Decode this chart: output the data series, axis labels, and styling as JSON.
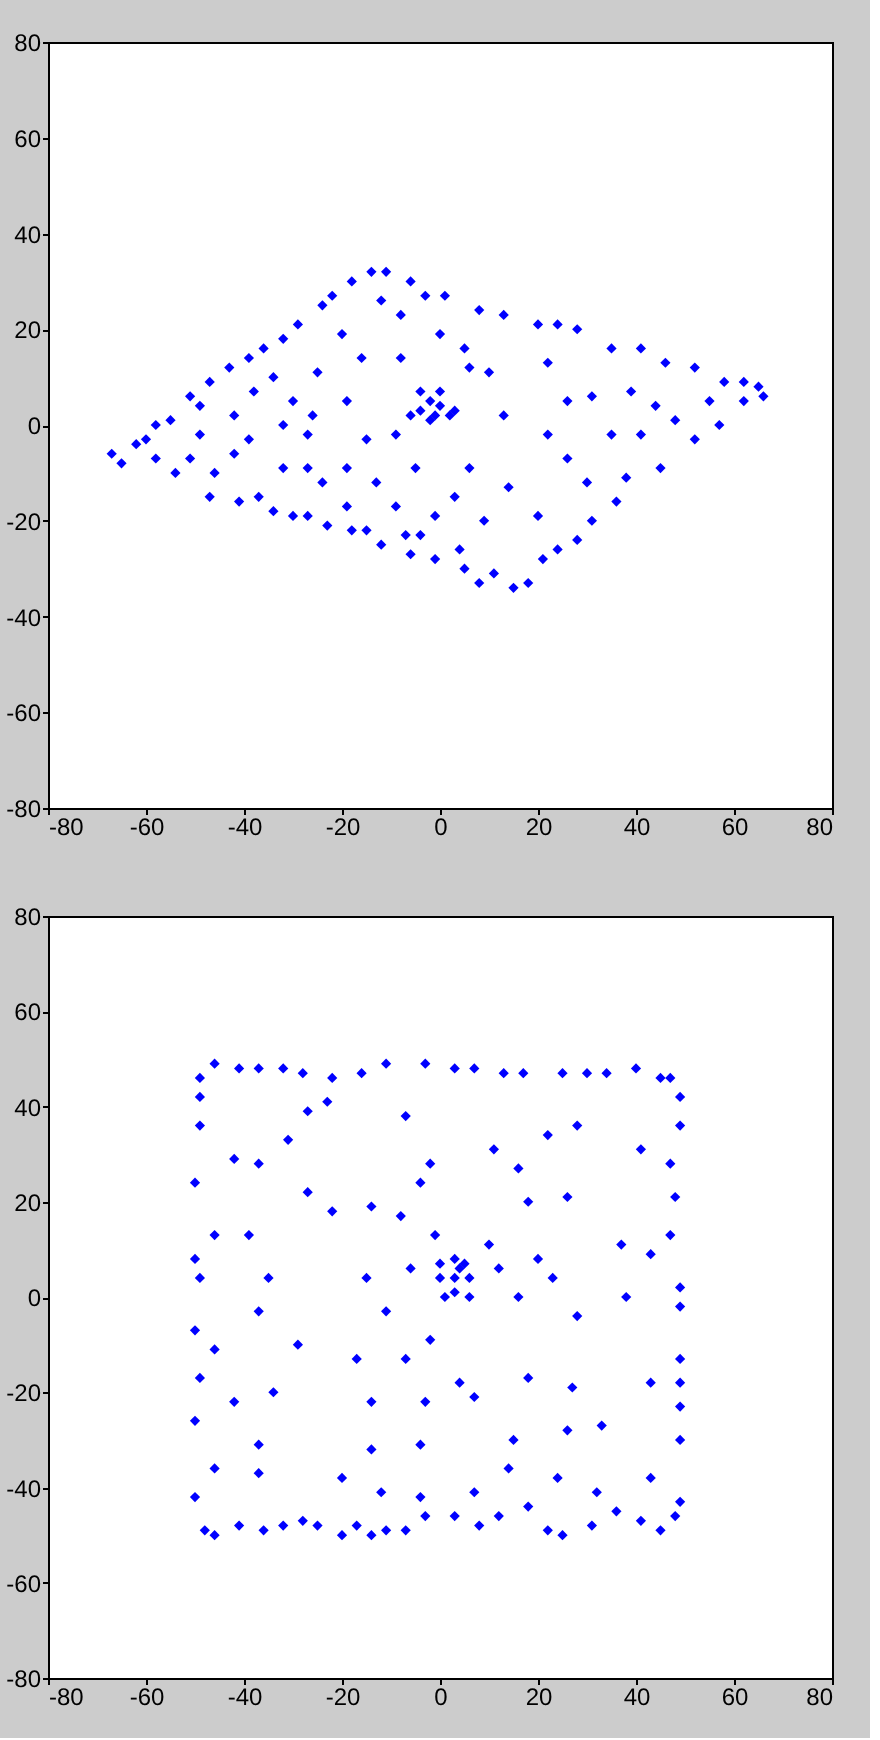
{
  "chart_data": [
    {
      "type": "scatter",
      "color": "#0000ff",
      "marker": "diamond",
      "grid": false,
      "xlim": [
        -80,
        80
      ],
      "ylim": [
        -80,
        80
      ],
      "xticks": [
        -80,
        -60,
        -40,
        -20,
        0,
        20,
        40,
        60,
        80
      ],
      "yticks": [
        -80,
        -60,
        -40,
        -20,
        0,
        20,
        40,
        60,
        80
      ],
      "x": [
        -67,
        -65,
        -62,
        -60,
        -58,
        -58,
        -55,
        -54,
        -51,
        -51,
        -49,
        -47,
        -46,
        -47,
        -43,
        -42,
        -41,
        -39,
        -36,
        -39,
        -37,
        -34,
        -32,
        -34,
        -32,
        -30,
        -29,
        -27,
        -27,
        -24,
        -25,
        -26,
        -22,
        -23,
        -20,
        -19,
        -19,
        -18,
        -18,
        -15,
        -16,
        -12,
        -14,
        -12,
        -11,
        -9,
        -8,
        -7,
        -6,
        -6,
        -3,
        -4,
        -1,
        1,
        0,
        3,
        4,
        5,
        8,
        8,
        11,
        10,
        13,
        15,
        18,
        20,
        21,
        22,
        24,
        24,
        28,
        26,
        28,
        31,
        31,
        35,
        36,
        38,
        41,
        41,
        46,
        45,
        52,
        48,
        52,
        55,
        58,
        57,
        62,
        62,
        66,
        65,
        -4,
        -2,
        -1,
        0,
        2,
        -2,
        -4,
        3,
        -6,
        0,
        -49,
        -42,
        -32,
        -30,
        -38,
        -15,
        -13,
        -9,
        -5,
        6,
        6,
        13,
        14,
        20,
        22,
        26,
        30,
        35,
        39,
        44,
        5,
        -8,
        -24,
        -27,
        -19,
        -1,
        9
      ],
      "values": [
        -6,
        -8,
        -4,
        -3,
        0,
        -7,
        1,
        -10,
        -7,
        6,
        4,
        -15,
        -10,
        9,
        12,
        2,
        -16,
        14,
        16,
        -3,
        -15,
        -18,
        18,
        10,
        0,
        -19,
        21,
        -9,
        -19,
        25,
        11,
        2,
        27,
        -21,
        19,
        5,
        -9,
        30,
        -22,
        -22,
        14,
        -25,
        32,
        26,
        32,
        -2,
        23,
        -23,
        30,
        -27,
        27,
        -23,
        -28,
        27,
        19,
        -15,
        -26,
        -30,
        24,
        -33,
        -31,
        11,
        23,
        -34,
        -33,
        21,
        -28,
        13,
        21,
        -26,
        20,
        -7,
        -24,
        -20,
        6,
        16,
        -16,
        -11,
        16,
        -2,
        13,
        -9,
        12,
        1,
        -3,
        5,
        9,
        0,
        9,
        5,
        6,
        8,
        3,
        5,
        2,
        4,
        2,
        1,
        7,
        3,
        2,
        7,
        -2,
        -6,
        -9,
        5,
        7,
        -3,
        -12,
        -17,
        -9,
        -9,
        12,
        2,
        -13,
        -19,
        -2,
        5,
        -12,
        -2,
        7,
        4,
        16,
        14,
        -12,
        -2,
        -17,
        -19,
        -20
      ]
    },
    {
      "type": "scatter",
      "color": "#0000ff",
      "marker": "diamond",
      "grid": false,
      "xlim": [
        -80,
        80
      ],
      "ylim": [
        -80,
        80
      ],
      "xticks": [
        -80,
        -60,
        -40,
        -20,
        0,
        20,
        40,
        60,
        80
      ],
      "yticks": [
        -80,
        -60,
        -40,
        -20,
        0,
        20,
        40,
        60,
        80
      ],
      "x": [
        -49,
        -46,
        -41,
        -37,
        -32,
        -28,
        -22,
        -16,
        -11,
        -3,
        3,
        7,
        13,
        17,
        25,
        30,
        34,
        40,
        45,
        47,
        49,
        49,
        47,
        48,
        47,
        49,
        49,
        49,
        49,
        49,
        49,
        49,
        48,
        45,
        41,
        36,
        31,
        25,
        22,
        18,
        12,
        8,
        3,
        -3,
        -7,
        -11,
        -14,
        -17,
        -20,
        -25,
        -28,
        -32,
        -36,
        -41,
        -46,
        -48,
        -50,
        -50,
        -49,
        -50,
        -49,
        -50,
        -50,
        -49,
        -49,
        -42,
        -37,
        -31,
        -27,
        -23,
        -7,
        -2,
        11,
        16,
        22,
        28,
        41,
        26,
        18,
        -4,
        -14,
        -22,
        -27,
        -39,
        -46,
        -8,
        -1,
        10,
        20,
        37,
        43,
        23,
        12,
        -6,
        -15,
        -35,
        -37,
        -11,
        -2,
        16,
        28,
        38,
        4,
        -7,
        -17,
        -29,
        -46,
        -42,
        -34,
        -14,
        -3,
        7,
        18,
        27,
        43,
        33,
        26,
        15,
        -4,
        -14,
        -37,
        -46,
        -37,
        -20,
        -12,
        -4,
        7,
        14,
        24,
        32,
        43,
        0,
        3,
        5,
        0,
        3,
        6,
        1,
        3,
        6,
        4
      ],
      "values": [
        46,
        49,
        48,
        48,
        48,
        47,
        46,
        47,
        49,
        49,
        48,
        48,
        47,
        47,
        47,
        47,
        47,
        48,
        46,
        46,
        42,
        36,
        28,
        21,
        13,
        2,
        -2,
        -13,
        -18,
        -23,
        -30,
        -43,
        -46,
        -49,
        -47,
        -45,
        -48,
        -50,
        -49,
        -44,
        -46,
        -48,
        -46,
        -46,
        -49,
        -49,
        -50,
        -48,
        -50,
        -48,
        -47,
        -48,
        -49,
        -48,
        -50,
        -49,
        -42,
        -26,
        -17,
        -7,
        4,
        8,
        24,
        36,
        42,
        29,
        28,
        33,
        39,
        41,
        38,
        28,
        31,
        27,
        34,
        36,
        31,
        21,
        20,
        24,
        19,
        18,
        22,
        13,
        13,
        17,
        13,
        11,
        8,
        11,
        9,
        4,
        6,
        6,
        4,
        4,
        -3,
        -3,
        -9,
        0,
        -4,
        0,
        -18,
        -13,
        -13,
        -10,
        -11,
        -22,
        -20,
        -22,
        -22,
        -21,
        -17,
        -19,
        -18,
        -27,
        -28,
        -30,
        -31,
        -32,
        -31,
        -36,
        -37,
        -38,
        -41,
        -42,
        -41,
        -36,
        -38,
        -41,
        -38,
        7,
        8,
        7,
        4,
        4,
        4,
        0,
        1,
        0,
        6
      ]
    }
  ]
}
